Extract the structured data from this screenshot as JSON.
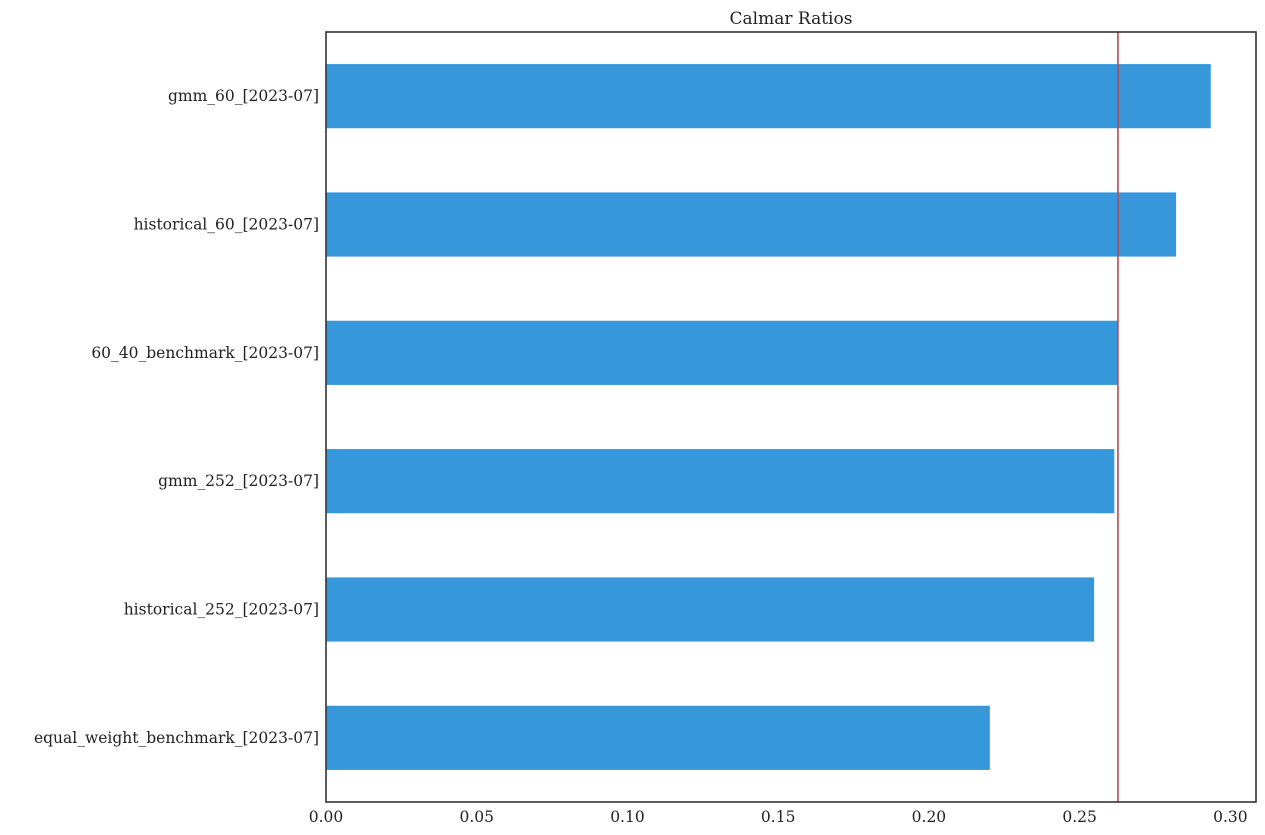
{
  "chart_data": {
    "type": "bar",
    "orientation": "horizontal",
    "title": "Calmar Ratios",
    "xlabel": "",
    "ylabel": "",
    "categories": [
      "gmm_60_[2023-07]",
      "historical_60_[2023-07]",
      "60_40_benchmark_[2023-07]",
      "gmm_252_[2023-07]",
      "historical_252_[2023-07]",
      "equal_weight_benchmark_[2023-07]"
    ],
    "values": [
      0.2935,
      0.282,
      0.2627,
      0.2615,
      0.2548,
      0.2202
    ],
    "xlim": [
      0.0,
      0.3085
    ],
    "xticks": [
      0.0,
      0.05,
      0.1,
      0.15,
      0.2,
      0.25,
      0.3
    ],
    "xtick_labels": [
      "0.00",
      "0.05",
      "0.10",
      "0.15",
      "0.20",
      "0.25",
      "0.30"
    ],
    "reference_line": {
      "x": 0.2627,
      "color": "#c0474f"
    },
    "bar_color": "#3698db",
    "grid": false,
    "legend": "none"
  }
}
